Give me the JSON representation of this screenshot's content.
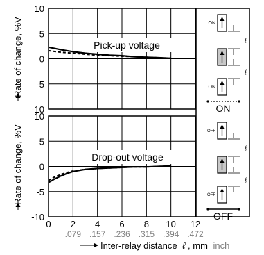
{
  "chart_data": [
    {
      "type": "line",
      "title": "Pick-up voltage",
      "ylabel": "Rate of change, %V",
      "xlim": [
        0,
        12
      ],
      "ylim": [
        -10,
        10
      ],
      "x_ticks": [
        "0",
        "2",
        "4",
        "6",
        "8",
        "10",
        "12"
      ],
      "y_ticks": [
        "10",
        "5",
        "0",
        "-5",
        "-10"
      ],
      "grid": true,
      "series": [
        {
          "style": "solid",
          "x": [
            0,
            1,
            2,
            3,
            4,
            5,
            6,
            7,
            8,
            9,
            10
          ],
          "y": [
            2.3,
            1.8,
            1.4,
            1.1,
            0.9,
            0.7,
            0.6,
            0.4,
            0.3,
            0.2,
            0.1
          ]
        },
        {
          "style": "dashed",
          "x": [
            0,
            1,
            2,
            3,
            4,
            5,
            6,
            7,
            8,
            9,
            10
          ],
          "y": [
            1.6,
            1.3,
            1.1,
            0.9,
            0.7,
            0.6,
            0.5,
            0.4,
            0.3,
            0.2,
            0.1
          ]
        }
      ],
      "diagram": {
        "label": "ON",
        "relay_labels": [
          "ON",
          "ON"
        ],
        "distance_symbol": "ℓ"
      }
    },
    {
      "type": "line",
      "title": "Drop-out voltage",
      "ylabel": "Rate of change, %V",
      "xlabel": "Inter-relay distance",
      "xlabel_symbol": "ℓ",
      "xlabel_unit_mm": ", mm",
      "xlabel_unit_inch": "inch",
      "xlim": [
        0,
        12
      ],
      "ylim": [
        -10,
        10
      ],
      "x_ticks": [
        "0",
        "2",
        "4",
        "6",
        "8",
        "10",
        "12"
      ],
      "x_ticks_inch": [
        ".079",
        ".157",
        ".236",
        ".315",
        ".394",
        ".472"
      ],
      "y_ticks": [
        "10",
        "5",
        "0",
        "-5",
        "-10"
      ],
      "grid": true,
      "series": [
        {
          "style": "solid",
          "x": [
            0,
            0.5,
            1,
            1.5,
            2,
            3,
            4,
            5,
            6,
            7,
            8,
            9,
            10
          ],
          "y": [
            -3.2,
            -2.5,
            -1.9,
            -1.4,
            -1.0,
            -0.6,
            -0.4,
            -0.3,
            -0.2,
            -0.1,
            -0.1,
            0.0,
            0.1
          ]
        },
        {
          "style": "dashed",
          "x": [
            0,
            0.5,
            1,
            1.5,
            2,
            3,
            4,
            5,
            6,
            7,
            8,
            9,
            10
          ],
          "y": [
            -2.8,
            -2.1,
            -1.6,
            -1.2,
            -0.9,
            -0.6,
            -0.4,
            -0.3,
            -0.2,
            -0.1,
            -0.1,
            0.0,
            0.1
          ]
        }
      ],
      "diagram": {
        "label": "OFF",
        "relay_labels": [
          "OFF",
          "OFF"
        ],
        "distance_symbol": "ℓ"
      }
    }
  ],
  "colors": {
    "line": "#000000",
    "inch_text": "#808080",
    "relay_fill": "#c8c8c8"
  }
}
